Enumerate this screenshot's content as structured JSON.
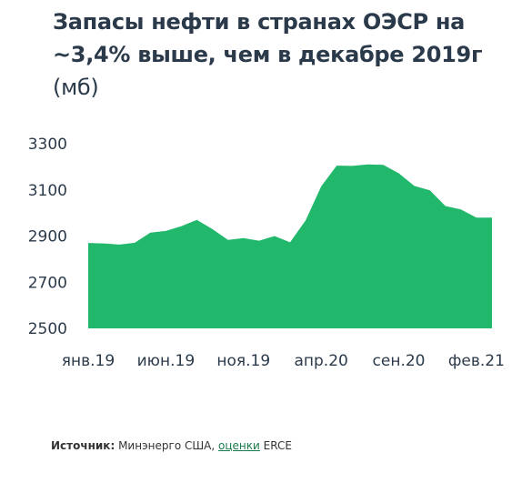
{
  "title": {
    "main": "Запасы нефти в странах ОЭСР на ~3,4% выше, чем в декабре 2019г",
    "unit": "(мб)"
  },
  "chart_data": {
    "type": "area",
    "title": "Запасы нефти в странах ОЭСР на ~3,4% выше, чем в декабре 2019г (мб)",
    "xlabel": "",
    "ylabel": "",
    "ylim": [
      2500,
      3300
    ],
    "yticks": [
      "3300",
      "3100",
      "2900",
      "2700",
      "2500"
    ],
    "xtick_labels": [
      "янв.19",
      "июн.19",
      "ноя.19",
      "апр.20",
      "сен.20",
      "фев.21"
    ],
    "color": "#22b86c",
    "grid": false,
    "x": [
      "янв.19",
      "фев.19",
      "мар.19",
      "апр.19",
      "май.19",
      "июн.19",
      "июл.19",
      "авг.19",
      "сен.19",
      "окт.19",
      "ноя.19",
      "дек.19",
      "янв.20",
      "фев.20",
      "мар.20",
      "апр.20",
      "май.20",
      "июн.20",
      "июл.20",
      "авг.20",
      "сен.20",
      "окт.20",
      "ноя.20",
      "дек.20",
      "янв.21",
      "фев.21",
      "мар.21"
    ],
    "values": [
      2870,
      2868,
      2863,
      2871,
      2915,
      2922,
      2943,
      2970,
      2930,
      2883,
      2891,
      2880,
      2900,
      2873,
      2968,
      3115,
      3205,
      3204,
      3210,
      3208,
      3172,
      3117,
      3098,
      3030,
      3015,
      2980,
      2980
    ]
  },
  "source": {
    "label": "Источник:",
    "text": "Минэнерго США,",
    "link": "оценки",
    "suffix": "ERCE"
  }
}
